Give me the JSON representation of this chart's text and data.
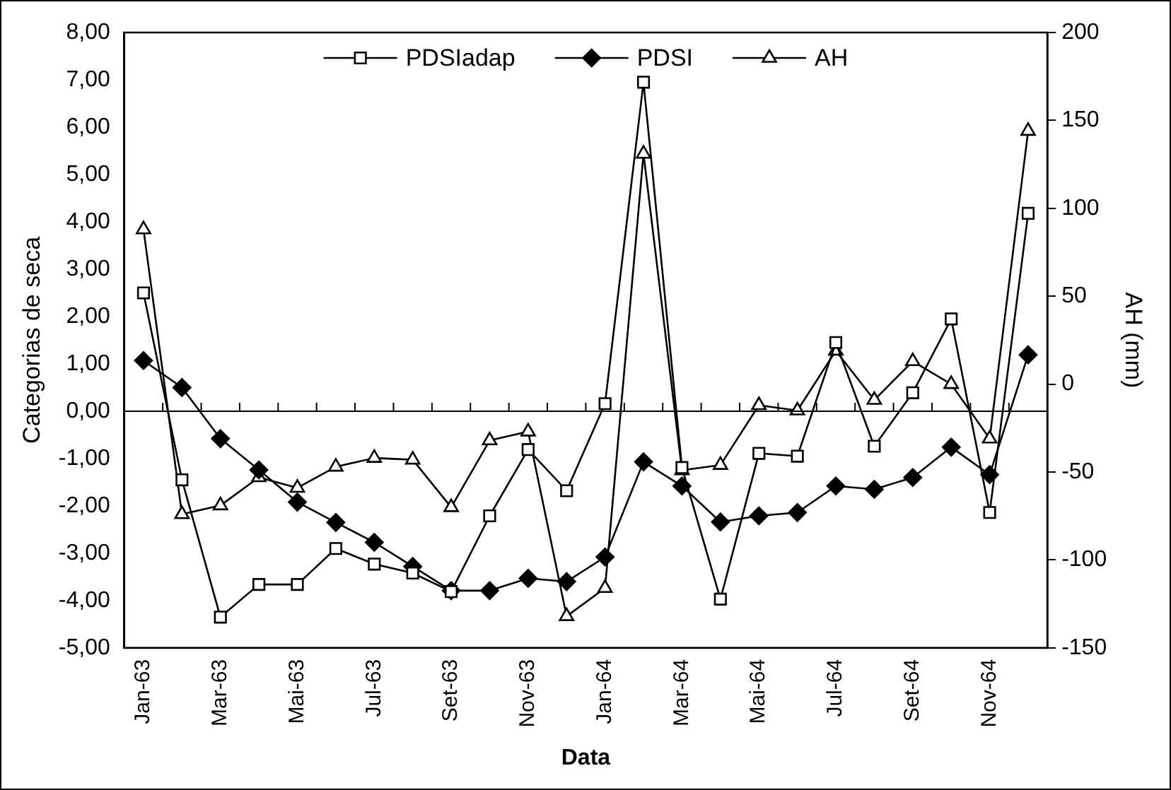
{
  "chart_data": {
    "type": "line",
    "xlabel": "Data",
    "ylabel": "Categorias de seca",
    "y2label": "AH (mm)",
    "categories": [
      "Jan-63",
      null,
      "Mar-63",
      null,
      "Mai-63",
      null,
      "Jul-63",
      null,
      "Set-63",
      null,
      "Nov-63",
      null,
      "Jan-64",
      null,
      "Mar-64",
      null,
      "Mai-64",
      null,
      "Jul-64",
      null,
      "Set-64",
      null,
      "Nov-64",
      null
    ],
    "series": [
      {
        "name": "PDSIadap",
        "color": "#000000",
        "marker": "square",
        "values": [
          2.5,
          -1.45,
          -4.35,
          -3.66,
          -3.66,
          -2.9,
          -3.23,
          -3.42,
          -3.81,
          -2.21,
          -0.81,
          -1.68,
          0.16,
          6.95,
          -1.19,
          -3.97,
          -0.89,
          -0.95,
          1.45,
          -0.74,
          0.39,
          1.95,
          -2.14,
          4.18
        ]
      },
      {
        "name": "PDSI",
        "color": "#000000",
        "marker": "diamond",
        "values": [
          1.07,
          0.5,
          -0.58,
          -1.24,
          -1.92,
          -2.35,
          -2.77,
          -3.28,
          -3.79,
          -3.79,
          -3.53,
          -3.6,
          -3.08,
          -1.07,
          -1.58,
          -2.34,
          -2.21,
          -2.14,
          -1.58,
          -1.65,
          -1.4,
          -0.76,
          -1.34,
          1.19
        ]
      },
      {
        "name": "AH",
        "color": "#000000",
        "marker": "triangle",
        "axis": "y2",
        "values": [
          88,
          -74,
          -69,
          -53,
          -59,
          -47,
          -42,
          -43,
          -70,
          -32,
          -27,
          -132,
          -116,
          131,
          -49,
          -46,
          -12,
          -15,
          19,
          -9,
          13,
          0,
          -31,
          144
        ]
      }
    ],
    "ylim": [
      -5,
      8
    ],
    "yticks": [
      {
        "value": -5,
        "label": "-5,00"
      },
      {
        "value": -4,
        "label": "-4,00"
      },
      {
        "value": -3,
        "label": "-3,00"
      },
      {
        "value": -2,
        "label": "-2,00"
      },
      {
        "value": -1,
        "label": "-1,00"
      },
      {
        "value": 0,
        "label": "0,00"
      },
      {
        "value": 1,
        "label": "1,00"
      },
      {
        "value": 2,
        "label": "2,00"
      },
      {
        "value": 3,
        "label": "3,00"
      },
      {
        "value": 4,
        "label": "4,00"
      },
      {
        "value": 5,
        "label": "5,00"
      },
      {
        "value": 6,
        "label": "6,00"
      },
      {
        "value": 7,
        "label": "7,00"
      },
      {
        "value": 8,
        "label": "8,00"
      }
    ],
    "y2lim": [
      -150,
      200
    ],
    "y2ticks": [
      -150,
      -100,
      -50,
      0,
      50,
      100,
      150,
      200
    ],
    "ref_lines": [
      {
        "axis": "y",
        "value": 0,
        "color": "#000000"
      }
    ],
    "legend": "top",
    "grid": false,
    "line_style": "solid"
  }
}
